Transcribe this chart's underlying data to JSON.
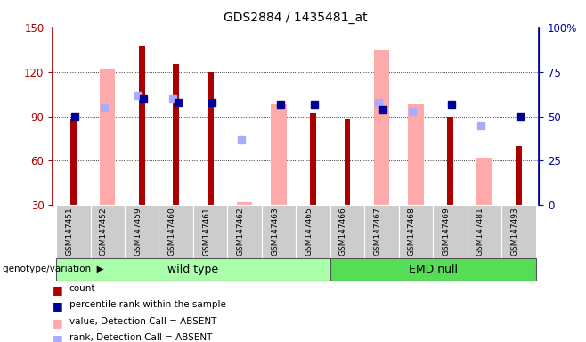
{
  "title": "GDS2884 / 1435481_at",
  "samples": [
    "GSM147451",
    "GSM147452",
    "GSM147459",
    "GSM147460",
    "GSM147461",
    "GSM147462",
    "GSM147463",
    "GSM147465",
    "GSM147466",
    "GSM147467",
    "GSM147468",
    "GSM147469",
    "GSM147481",
    "GSM147493"
  ],
  "n_wildtype": 8,
  "n_emd": 6,
  "count": [
    88,
    null,
    137,
    125,
    120,
    null,
    null,
    92,
    88,
    null,
    null,
    90,
    null,
    70
  ],
  "percentile_rank": [
    50,
    null,
    60,
    58,
    58,
    null,
    57,
    57,
    null,
    54,
    null,
    57,
    null,
    50
  ],
  "value_absent": [
    null,
    122,
    null,
    null,
    null,
    32,
    98,
    null,
    null,
    135,
    98,
    null,
    62,
    null
  ],
  "rank_absent": [
    null,
    55,
    62,
    60,
    null,
    37,
    null,
    null,
    null,
    58,
    53,
    null,
    45,
    null
  ],
  "ylim_left": [
    30,
    150
  ],
  "ylim_right": [
    0,
    100
  ],
  "yticks_left": [
    30,
    60,
    90,
    120,
    150
  ],
  "yticks_right": [
    0,
    25,
    50,
    75,
    100
  ],
  "color_count": "#aa0000",
  "color_percentile": "#000099",
  "color_value_absent": "#ffaaaa",
  "color_rank_absent": "#aaaaff",
  "color_group_wt": "#aaffaa",
  "color_group_emd": "#55dd55",
  "color_sample_bg": "#cccccc"
}
